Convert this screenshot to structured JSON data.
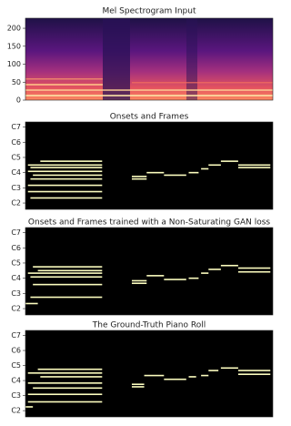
{
  "chart_data": [
    {
      "type": "heatmap",
      "title": "Mel Spectrogram Input",
      "ylim": [
        0,
        228
      ],
      "yticks": [
        0,
        50,
        100,
        150,
        200
      ]
    },
    {
      "type": "pianoroll",
      "title": "Onsets and Frames",
      "ylim": [
        31,
        100
      ],
      "xlim": [
        0,
        100
      ],
      "color": "#fcfdbf",
      "yticks": [
        {
          "value": 36,
          "label": "C2"
        },
        {
          "value": 48,
          "label": "C3"
        },
        {
          "value": 60,
          "label": "C4"
        },
        {
          "value": 72,
          "label": "C5"
        },
        {
          "value": 84,
          "label": "C6"
        },
        {
          "value": 96,
          "label": "C7"
        }
      ],
      "notes": [
        {
          "pitch": 69,
          "start": 6,
          "end": 31
        },
        {
          "pitch": 66,
          "start": 1,
          "end": 31
        },
        {
          "pitch": 64,
          "start": 2,
          "end": 31
        },
        {
          "pitch": 61,
          "start": 1,
          "end": 31
        },
        {
          "pitch": 58,
          "start": 3,
          "end": 31
        },
        {
          "pitch": 55,
          "start": 2,
          "end": 31
        },
        {
          "pitch": 50,
          "start": 1,
          "end": 31
        },
        {
          "pitch": 45,
          "start": 1,
          "end": 31
        },
        {
          "pitch": 40,
          "start": 2,
          "end": 31
        },
        {
          "pitch": 57,
          "start": 43,
          "end": 49
        },
        {
          "pitch": 55,
          "start": 43,
          "end": 49
        },
        {
          "pitch": 60,
          "start": 49,
          "end": 56
        },
        {
          "pitch": 58,
          "start": 56,
          "end": 65
        },
        {
          "pitch": 60,
          "start": 66,
          "end": 70
        },
        {
          "pitch": 63,
          "start": 71,
          "end": 74
        },
        {
          "pitch": 66,
          "start": 74,
          "end": 79
        },
        {
          "pitch": 69,
          "start": 79,
          "end": 86
        },
        {
          "pitch": 66,
          "start": 86,
          "end": 99
        },
        {
          "pitch": 64,
          "start": 86,
          "end": 99
        }
      ]
    },
    {
      "type": "pianoroll",
      "title": "Onsets and Frames trained with a Non-Saturating GAN loss",
      "ylim": [
        31,
        100
      ],
      "xlim": [
        0,
        100
      ],
      "color": "#fcfdbf",
      "yticks": [
        {
          "value": 36,
          "label": "C2"
        },
        {
          "value": 48,
          "label": "C3"
        },
        {
          "value": 60,
          "label": "C4"
        },
        {
          "value": 72,
          "label": "C5"
        },
        {
          "value": 84,
          "label": "C6"
        },
        {
          "value": 96,
          "label": "C7"
        }
      ],
      "notes": [
        {
          "pitch": 69,
          "start": 3,
          "end": 31
        },
        {
          "pitch": 66,
          "start": 5,
          "end": 31
        },
        {
          "pitch": 64,
          "start": 1,
          "end": 31
        },
        {
          "pitch": 61,
          "start": 2,
          "end": 31
        },
        {
          "pitch": 55,
          "start": 3,
          "end": 31
        },
        {
          "pitch": 45,
          "start": 2,
          "end": 31
        },
        {
          "pitch": 40,
          "start": 0,
          "end": 5
        },
        {
          "pitch": 58,
          "start": 43,
          "end": 49
        },
        {
          "pitch": 56,
          "start": 43,
          "end": 49
        },
        {
          "pitch": 62,
          "start": 49,
          "end": 56
        },
        {
          "pitch": 59,
          "start": 56,
          "end": 65
        },
        {
          "pitch": 60,
          "start": 66,
          "end": 70
        },
        {
          "pitch": 64,
          "start": 71,
          "end": 74
        },
        {
          "pitch": 67,
          "start": 74,
          "end": 79
        },
        {
          "pitch": 70,
          "start": 79,
          "end": 86
        },
        {
          "pitch": 68,
          "start": 86,
          "end": 99
        },
        {
          "pitch": 65,
          "start": 86,
          "end": 99
        }
      ]
    },
    {
      "type": "pianoroll",
      "title": "The Ground-Truth Piano Roll",
      "ylim": [
        31,
        100
      ],
      "xlim": [
        0,
        100
      ],
      "color": "#fcfdbf",
      "yticks": [
        {
          "value": 36,
          "label": "C2"
        },
        {
          "value": 48,
          "label": "C3"
        },
        {
          "value": 60,
          "label": "C4"
        },
        {
          "value": 72,
          "label": "C5"
        },
        {
          "value": 84,
          "label": "C6"
        },
        {
          "value": 96,
          "label": "C7"
        }
      ],
      "notes": [
        {
          "pitch": 69,
          "start": 5,
          "end": 31
        },
        {
          "pitch": 66,
          "start": 1,
          "end": 31
        },
        {
          "pitch": 63,
          "start": 6,
          "end": 31
        },
        {
          "pitch": 58,
          "start": 1,
          "end": 31
        },
        {
          "pitch": 54,
          "start": 3,
          "end": 31
        },
        {
          "pitch": 49,
          "start": 1,
          "end": 31
        },
        {
          "pitch": 43,
          "start": 1,
          "end": 31
        },
        {
          "pitch": 39,
          "start": 0,
          "end": 3
        },
        {
          "pitch": 57,
          "start": 43,
          "end": 48
        },
        {
          "pitch": 55,
          "start": 43,
          "end": 48
        },
        {
          "pitch": 64,
          "start": 48,
          "end": 56
        },
        {
          "pitch": 61,
          "start": 56,
          "end": 65
        },
        {
          "pitch": 63,
          "start": 66,
          "end": 69
        },
        {
          "pitch": 64,
          "start": 71,
          "end": 74
        },
        {
          "pitch": 68,
          "start": 74,
          "end": 78
        },
        {
          "pitch": 70,
          "start": 79,
          "end": 86
        },
        {
          "pitch": 68,
          "start": 86,
          "end": 99
        },
        {
          "pitch": 65,
          "start": 86,
          "end": 99
        }
      ]
    }
  ]
}
